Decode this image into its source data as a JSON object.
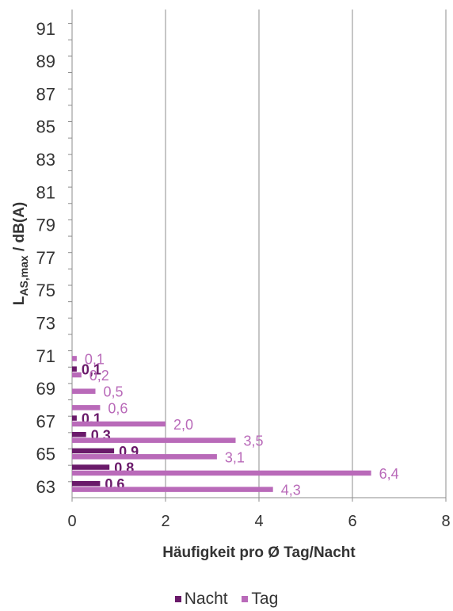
{
  "chart_data": {
    "type": "bar",
    "orientation": "horizontal",
    "xlabel": "Häufigkeit pro Ø Tag/Nacht",
    "ylabel": {
      "main": "L",
      "sub": "AS,max",
      "rest": " / dB(A)"
    },
    "xlim": [
      0,
      8
    ],
    "x_ticks": [
      "0",
      "2",
      "4",
      "6",
      "8"
    ],
    "y_ticks": [
      "63",
      "65",
      "67",
      "69",
      "71",
      "73",
      "75",
      "77",
      "79",
      "81",
      "83",
      "85",
      "87",
      "89",
      "91"
    ],
    "categories": [
      63,
      64,
      65,
      66,
      67,
      68,
      69,
      70,
      71
    ],
    "series": [
      {
        "name": "Nacht",
        "color": "#6a1a6a",
        "values": [
          0.6,
          0.8,
          0.9,
          0.3,
          0.1,
          0,
          0,
          0.1,
          0
        ],
        "labels": [
          "0,6",
          "0,8",
          "0,9",
          "0,3",
          "0,1",
          "",
          "",
          "0,1",
          ""
        ]
      },
      {
        "name": "Tag",
        "color": "#b96ab9",
        "values": [
          4.3,
          6.4,
          3.1,
          3.5,
          2.0,
          0.6,
          0.5,
          0.2,
          0.1
        ],
        "labels": [
          "4,3",
          "6,4",
          "3,1",
          "3,5",
          "2,0",
          "0,6",
          "0,5",
          "0,2",
          "0,1"
        ]
      }
    ],
    "grid": "vertical",
    "legend_position": "bottom"
  }
}
